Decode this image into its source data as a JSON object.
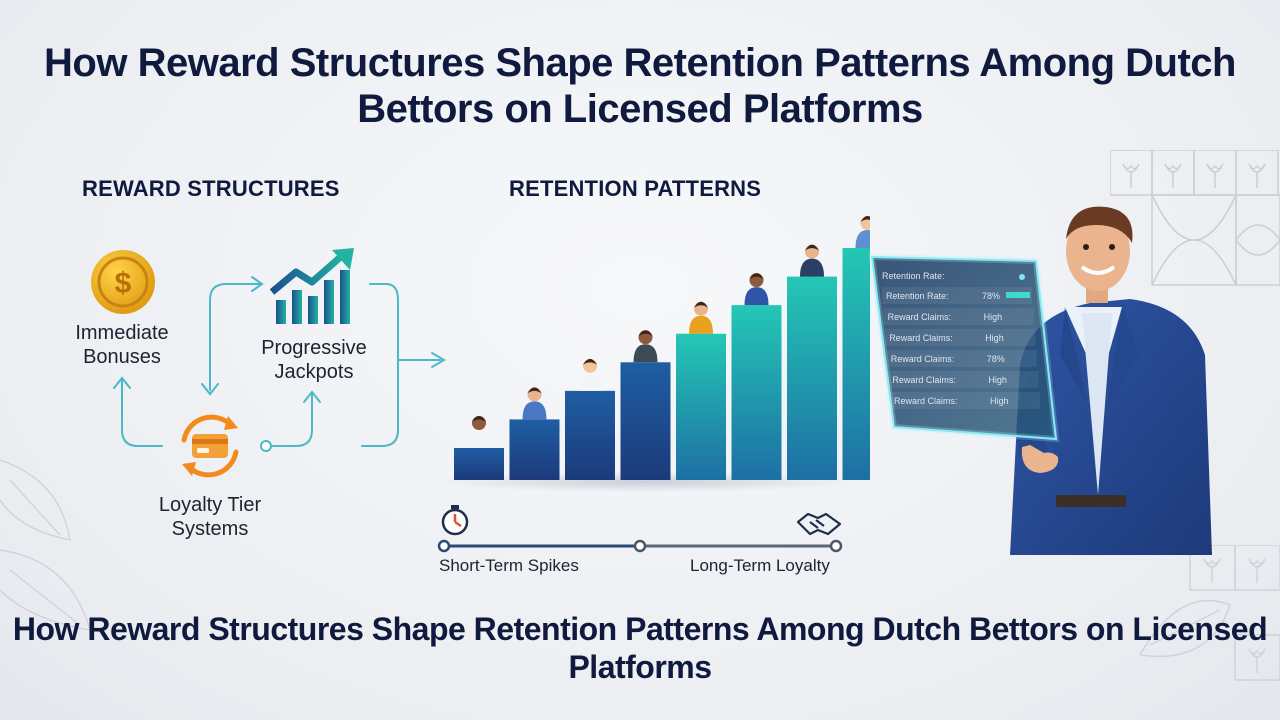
{
  "title": "How Reward Structures Shape Retention Patterns Among Dutch Bettors on Licensed Platforms",
  "sections": {
    "rewards_heading": "REWARD STRUCTURES",
    "retention_heading": "RETENTION PATTERNS"
  },
  "reward_nodes": {
    "immediate_bonuses": "Immediate Bonuses",
    "progressive_jackpots": "Progressive Jackpots",
    "loyalty_tier_systems": "Loyalty Tier Systems"
  },
  "icons": {
    "immediate_bonuses": "dollar-coin-icon",
    "progressive_jackpots": "rising-chart-icon",
    "loyalty_tier_systems": "card-cycle-icon",
    "short_term": "stopwatch-icon",
    "long_term": "handshake-icon"
  },
  "timeline": {
    "start_label": "Short-Term Spikes",
    "end_label": "Long-Term Loyalty"
  },
  "retention_chart": {
    "type": "bar",
    "bar_levels": [
      1,
      2,
      3,
      4,
      5,
      6,
      7,
      8
    ],
    "colors": [
      "#1c3a7a",
      "#1f5ea3",
      "#1e8fb0",
      "#22c4b4"
    ]
  },
  "dashboard": {
    "header": "Retention Rate:",
    "rows": [
      {
        "label": "Retention Rate:",
        "value": "78%"
      },
      {
        "label": "Reward Claims:",
        "value": "High"
      },
      {
        "label": "Reward Claims:",
        "value": "High"
      },
      {
        "label": "Reward Claims:",
        "value": "78%"
      },
      {
        "label": "Reward Claims:",
        "value": "High"
      },
      {
        "label": "Reward Claims:",
        "value": "High"
      }
    ]
  },
  "footer_title": "How Reward Structures Shape Retention Patterns Among Dutch Bettors on Licensed Platforms"
}
